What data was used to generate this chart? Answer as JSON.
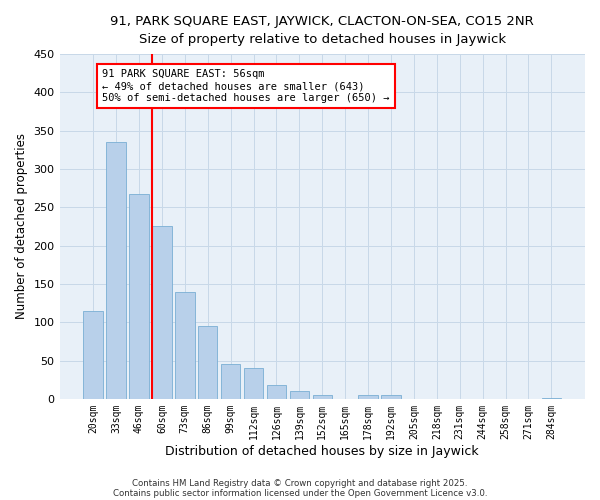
{
  "title": "91, PARK SQUARE EAST, JAYWICK, CLACTON-ON-SEA, CO15 2NR",
  "subtitle": "Size of property relative to detached houses in Jaywick",
  "xlabel": "Distribution of detached houses by size in Jaywick",
  "ylabel": "Number of detached properties",
  "bar_color": "#b8d0ea",
  "bar_edge_color": "#7aafd4",
  "bg_color": "#e8f0f8",
  "grid_color": "#c8d8e8",
  "categories": [
    "20sqm",
    "33sqm",
    "46sqm",
    "60sqm",
    "73sqm",
    "86sqm",
    "99sqm",
    "112sqm",
    "126sqm",
    "139sqm",
    "152sqm",
    "165sqm",
    "178sqm",
    "192sqm",
    "205sqm",
    "218sqm",
    "231sqm",
    "244sqm",
    "258sqm",
    "271sqm",
    "284sqm"
  ],
  "values": [
    115,
    335,
    268,
    225,
    140,
    95,
    45,
    40,
    18,
    10,
    5,
    0,
    5,
    5,
    0,
    0,
    0,
    0,
    0,
    0,
    1
  ],
  "ylim": [
    0,
    450
  ],
  "yticks": [
    0,
    50,
    100,
    150,
    200,
    250,
    300,
    350,
    400,
    450
  ],
  "vline_pos": 2.55,
  "annotation_line1": "91 PARK SQUARE EAST: 56sqm",
  "annotation_line2": "← 49% of detached houses are smaller (643)",
  "annotation_line3": "50% of semi-detached houses are larger (650) →",
  "footnote1": "Contains HM Land Registry data © Crown copyright and database right 2025.",
  "footnote2": "Contains public sector information licensed under the Open Government Licence v3.0."
}
